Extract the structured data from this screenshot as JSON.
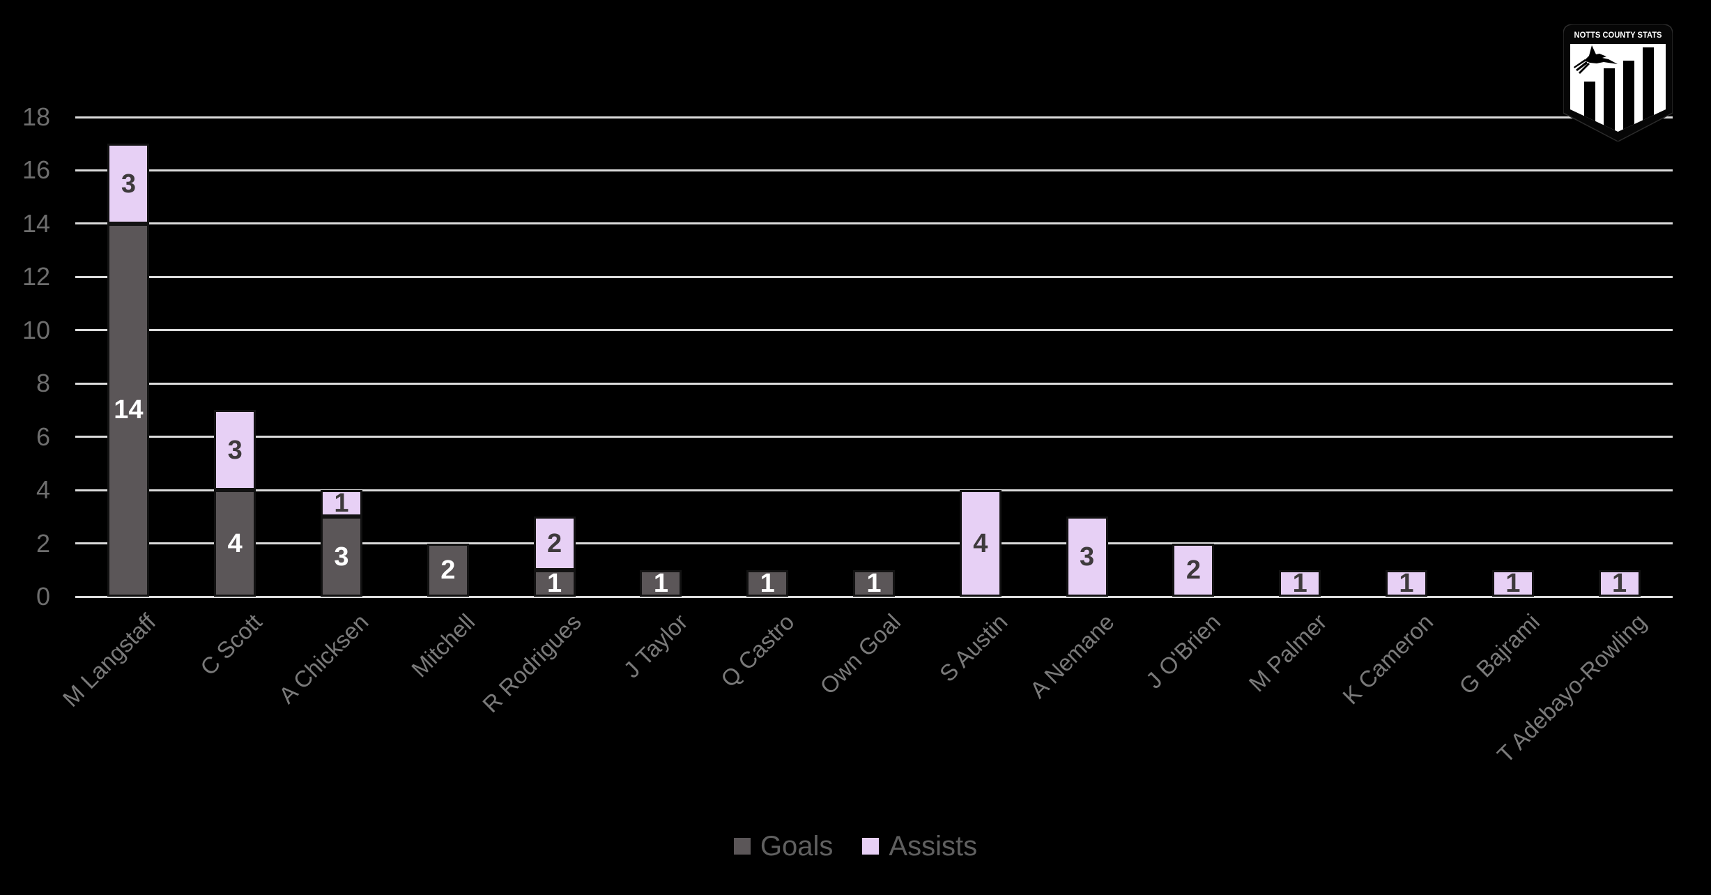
{
  "chart_data": {
    "type": "bar",
    "stacked": true,
    "title": "",
    "xlabel": "",
    "ylabel": "",
    "ylim": [
      0,
      18
    ],
    "ytick_step": 2,
    "grid": true,
    "legend_position": "bottom",
    "categories": [
      "M Langstaff",
      "C Scott",
      "A Chicksen",
      "Mitchell",
      "R Rodrigues",
      "J Taylor",
      "Q Castro",
      "Own Goal",
      "S Austin",
      "A Nemane",
      "J O'Brien",
      "M Palmer",
      "K Cameron",
      "G Bajrami",
      "T Adebayo-Rowling"
    ],
    "series": [
      {
        "name": "Goals",
        "color": "#5b5658",
        "label_color": "#ffffff",
        "values": [
          14,
          4,
          3,
          2,
          1,
          1,
          1,
          1,
          0,
          0,
          0,
          0,
          0,
          0,
          0
        ]
      },
      {
        "name": "Assists",
        "color": "#e7d0f5",
        "label_color": "#3e3a3c",
        "values": [
          3,
          3,
          1,
          0,
          2,
          0,
          0,
          0,
          4,
          3,
          2,
          1,
          1,
          1,
          1
        ]
      }
    ]
  },
  "logo": {
    "title": "NOTTS COUNTY STATS"
  },
  "colors": {
    "background": "#000000",
    "gridline": "#dcdcdc",
    "y_tick_label": "#6e6e6e",
    "x_tick_label": "#7a7a7a",
    "legend_text": "#606060",
    "goals_bar": "#5b5658",
    "assists_bar": "#e7d0f5",
    "segment_border": "#121212"
  }
}
